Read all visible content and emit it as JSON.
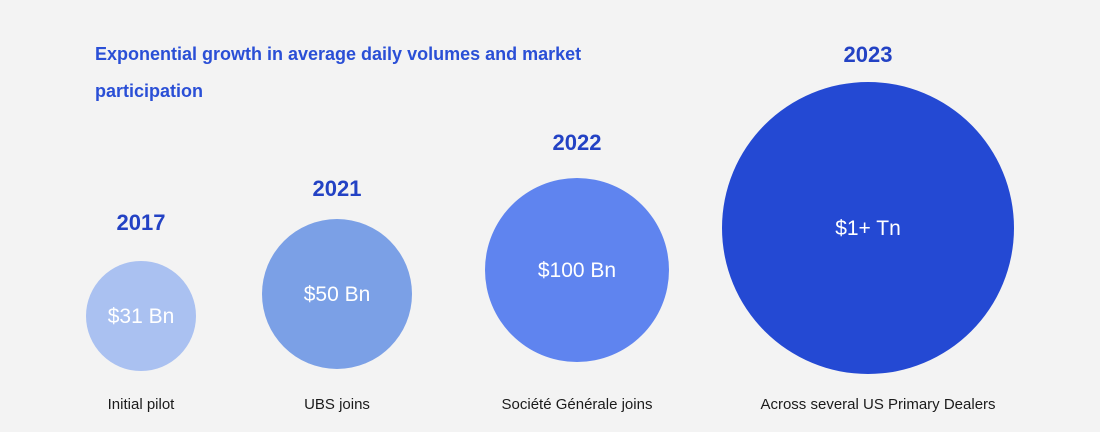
{
  "chart_data": {
    "type": "bubble",
    "title": "Exponential growth in average daily volumes and market participation",
    "unit": "USD",
    "points": [
      {
        "year": "2017",
        "value": 31,
        "value_label": "$31 Bn",
        "caption": "Initial pilot",
        "color": "#aac1f1"
      },
      {
        "year": "2021",
        "value": 50,
        "value_label": "$50 Bn",
        "caption": "UBS joins",
        "color": "#7ba0e6"
      },
      {
        "year": "2022",
        "value": 100,
        "value_label": "$100 Bn",
        "caption": "Société Générale joins",
        "color": "#5f84ef"
      },
      {
        "year": "2023",
        "value": 1000,
        "value_label": "$1+ Tn",
        "caption": "Across several US Primary Dealers",
        "color": "#2449d3"
      }
    ]
  },
  "colors": {
    "title": "#2a4fd6",
    "year": "#2342c4",
    "value_text": "#ffffff",
    "caption": "#1b1b1b"
  }
}
